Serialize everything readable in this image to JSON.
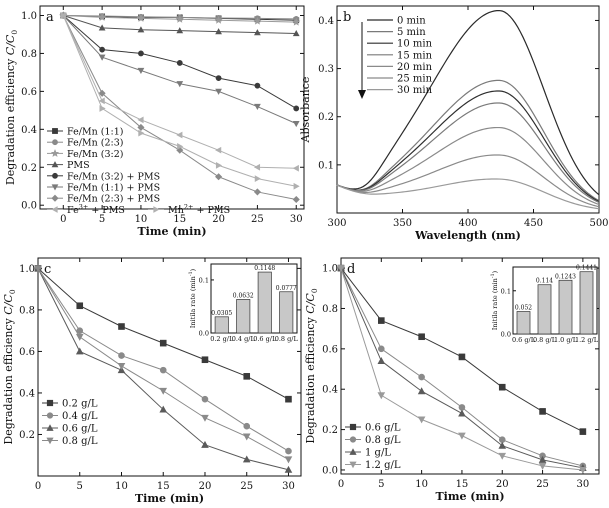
{
  "chart_data": [
    {
      "panel": "a",
      "type": "line",
      "xlabel": "Time (min)",
      "ylabel_main": "Degradation efficiency ",
      "ylabel_c": "C/C",
      "ylabel_sub": "0",
      "xlim": [
        -3,
        31
      ],
      "ylim": [
        -0.02,
        1.05
      ],
      "xticks": [
        0,
        5,
        10,
        15,
        20,
        25,
        30
      ],
      "yticks": [
        0.0,
        0.2,
        0.4,
        0.6,
        0.8,
        1.0
      ],
      "yticklabels": [
        "0.0",
        "0.2",
        "0.4",
        "0.6",
        "0.8",
        "1.0"
      ],
      "x": [
        0,
        5,
        10,
        15,
        20,
        25,
        30
      ],
      "series": [
        {
          "name": "Fe/Mn (1:1)",
          "marker": "square",
          "color": "#3a3a3a",
          "values": [
            1.0,
            0.995,
            0.99,
            0.99,
            0.985,
            0.98,
            0.975
          ]
        },
        {
          "name": "Fe/Mn (2:3)",
          "marker": "circle",
          "color": "#8a8a8a",
          "values": [
            1.0,
            0.997,
            0.993,
            0.99,
            0.987,
            0.985,
            0.982
          ]
        },
        {
          "name": "Fe/Mn (3:2)",
          "marker": "star",
          "color": "#9a9a9a",
          "values": [
            1.0,
            0.99,
            0.985,
            0.98,
            0.975,
            0.97,
            0.965
          ]
        },
        {
          "name": "PMS",
          "marker": "triangle",
          "color": "#555555",
          "values": [
            1.0,
            0.935,
            0.925,
            0.92,
            0.915,
            0.91,
            0.905
          ]
        },
        {
          "name": "Fe/Mn (3:2) + PMS",
          "marker": "circle",
          "color": "#3a3a3a",
          "values": [
            1.0,
            0.82,
            0.8,
            0.75,
            0.67,
            0.63,
            0.51
          ]
        },
        {
          "name": "Fe/Mn (1:1) + PMS",
          "marker": "triangle-down",
          "color": "#7a7a7a",
          "values": [
            1.0,
            0.78,
            0.71,
            0.64,
            0.6,
            0.52,
            0.43
          ]
        },
        {
          "name": "Fe/Mn (2:3) + PMS",
          "marker": "diamond",
          "color": "#8a8a8a",
          "values": [
            1.0,
            0.59,
            0.41,
            0.29,
            0.15,
            0.07,
            0.03
          ]
        },
        {
          "name": "Fe3+ + PMS",
          "marker": "triangle-left",
          "color": "#b0b0b0",
          "values": [
            1.0,
            0.55,
            0.45,
            0.37,
            0.29,
            0.2,
            0.195
          ]
        },
        {
          "name": "Mn2+ + PMS",
          "marker": "triangle-right",
          "color": "#b0b0b0",
          "values": [
            1.0,
            0.51,
            0.38,
            0.31,
            0.21,
            0.14,
            0.1
          ]
        }
      ],
      "legend": [
        {
          "text": "Fe/Mn (1:1)",
          "marker": "square",
          "color": "#3a3a3a"
        },
        {
          "text": "Fe/Mn (2:3)",
          "marker": "circle",
          "color": "#8a8a8a"
        },
        {
          "text": "Fe/Mn (3:2)",
          "marker": "star",
          "color": "#9a9a9a"
        },
        {
          "text": "PMS",
          "marker": "triangle",
          "color": "#555555"
        },
        {
          "text": "Fe/Mn (3:2) + PMS",
          "marker": "circle",
          "color": "#3a3a3a"
        },
        {
          "text": "Fe/Mn (1:1) + PMS",
          "marker": "triangle-down",
          "color": "#7a7a7a"
        },
        {
          "text": "Fe/Mn (2:3) + PMS",
          "marker": "diamond",
          "color": "#8a8a8a"
        },
        {
          "text": "Fe",
          "sup": "3+",
          "after": " + PMS",
          "marker": "triangle-left",
          "color": "#b0b0b0"
        },
        {
          "text": "Mn",
          "sup": "2+",
          "after": " + PMS",
          "marker": "triangle-right",
          "color": "#b0b0b0"
        }
      ]
    },
    {
      "panel": "b",
      "type": "line",
      "xlabel": "Wavelength (nm)",
      "ylabel": "Absorbance",
      "xlim": [
        300,
        500
      ],
      "ylim": [
        0.0,
        0.43
      ],
      "xticks": [
        300,
        350,
        400,
        450,
        500
      ],
      "yticks": [
        0.1,
        0.2,
        0.3,
        0.4
      ],
      "yticklabels": [
        "0.1",
        "0.2",
        "0.3",
        "0.4"
      ],
      "series": [
        {
          "name": "0 min",
          "color": "#2a2a2a",
          "peak": 0.42
        },
        {
          "name": "5 min",
          "color": "#7a7a7a",
          "peak": 0.275
        },
        {
          "name": "10 min",
          "color": "#2e2e2e",
          "peak": 0.253
        },
        {
          "name": "15 min",
          "color": "#7a7a7a",
          "peak": 0.228
        },
        {
          "name": "20 min",
          "color": "#8a8a8a",
          "peak": 0.177
        },
        {
          "name": "25 min",
          "color": "#8a8a8a",
          "peak": 0.12
        },
        {
          "name": "30 min",
          "color": "#9a9a9a",
          "peak": 0.07
        }
      ]
    },
    {
      "panel": "c",
      "type": "line",
      "xlabel": "Time (min)",
      "ylabel_main": "Degradation efficiency ",
      "ylabel_c": "C/C",
      "ylabel_sub": "0",
      "xlim": [
        0,
        31.5
      ],
      "ylim": [
        0.0,
        1.05
      ],
      "xticks": [
        0,
        5,
        10,
        15,
        20,
        25,
        30
      ],
      "yticks": [
        0.2,
        0.4,
        0.6,
        0.8,
        1.0
      ],
      "yticklabels": [
        "0.2",
        "0.4",
        "0.6",
        "0.8",
        "1.0"
      ],
      "x": [
        0,
        5,
        10,
        15,
        20,
        25,
        30
      ],
      "series": [
        {
          "name": "0.2 g/L",
          "marker": "square",
          "color": "#3a3a3a",
          "values": [
            1.0,
            0.82,
            0.72,
            0.64,
            0.56,
            0.48,
            0.37
          ]
        },
        {
          "name": "0.4 g/L",
          "marker": "circle",
          "color": "#8a8a8a",
          "values": [
            1.0,
            0.7,
            0.58,
            0.51,
            0.37,
            0.24,
            0.12
          ]
        },
        {
          "name": "0.6 g/L",
          "marker": "triangle",
          "color": "#5a5a5a",
          "values": [
            1.0,
            0.6,
            0.51,
            0.32,
            0.15,
            0.08,
            0.03
          ]
        },
        {
          "name": "0.8 g/L",
          "marker": "triangle-down",
          "color": "#8a8a8a",
          "values": [
            1.0,
            0.67,
            0.53,
            0.41,
            0.28,
            0.19,
            0.08
          ]
        }
      ],
      "inset": {
        "type": "bar",
        "ylabel": "Initila rate (min",
        "ylabel_sup": "-1",
        "ylabel_end": ")",
        "ylim": [
          0,
          0.13
        ],
        "yticks": [
          0.0,
          0.1
        ],
        "yticklabels": [
          "0.0",
          "0.1"
        ],
        "categories": [
          "0.2 g/L",
          "0.4 g/L",
          "0.6 g/L",
          "0.8 g/L"
        ],
        "values": [
          0.0305,
          0.0632,
          0.1148,
          0.0777
        ],
        "labels": [
          "0.0305",
          "0.0632",
          "0.1148",
          "0.0777"
        ]
      }
    },
    {
      "panel": "d",
      "type": "line",
      "xlabel": "Time (min)",
      "ylabel_main": "Degradation efficiency ",
      "ylabel_c": "C/C",
      "ylabel_sub": "0",
      "xlim": [
        0,
        32
      ],
      "ylim": [
        -0.02,
        1.05
      ],
      "xticks": [
        0,
        5,
        10,
        15,
        20,
        25,
        30
      ],
      "yticks": [
        0.0,
        0.2,
        0.4,
        0.6,
        0.8,
        1.0
      ],
      "yticklabels": [
        "0.0",
        "0.2",
        "0.4",
        "0.6",
        "0.8",
        "1.0"
      ],
      "x": [
        0,
        5,
        10,
        15,
        20,
        25,
        30
      ],
      "series": [
        {
          "name": "0.6 g/L",
          "marker": "square",
          "color": "#3a3a3a",
          "values": [
            1.0,
            0.74,
            0.66,
            0.56,
            0.41,
            0.29,
            0.19
          ]
        },
        {
          "name": "0.8 g/L",
          "marker": "circle",
          "color": "#8a8a8a",
          "values": [
            1.0,
            0.6,
            0.46,
            0.31,
            0.15,
            0.07,
            0.02
          ]
        },
        {
          "name": "1 g/L",
          "marker": "triangle",
          "color": "#5a5a5a",
          "values": [
            1.0,
            0.54,
            0.39,
            0.28,
            0.12,
            0.05,
            0.01
          ]
        },
        {
          "name": "1.2 g/L",
          "marker": "triangle-down",
          "color": "#9a9a9a",
          "values": [
            1.0,
            0.37,
            0.25,
            0.17,
            0.07,
            0.02,
            0.0
          ]
        }
      ],
      "inset": {
        "type": "bar",
        "ylabel": "Initila rate (min",
        "ylabel_sup": "-1",
        "ylabel_end": ")",
        "ylim": [
          0,
          0.155
        ],
        "yticks": [
          0.0,
          0.1
        ],
        "yticklabels": [
          "0.0",
          "0.1"
        ],
        "categories": [
          "0.6 g/L",
          "0.8 g/L",
          "1.0 g/L",
          "1.2 g/L"
        ],
        "values": [
          0.052,
          0.114,
          0.1243,
          0.1441
        ],
        "labels": [
          "0.052",
          "0.114",
          "0.1243",
          "0.1441"
        ]
      }
    }
  ]
}
